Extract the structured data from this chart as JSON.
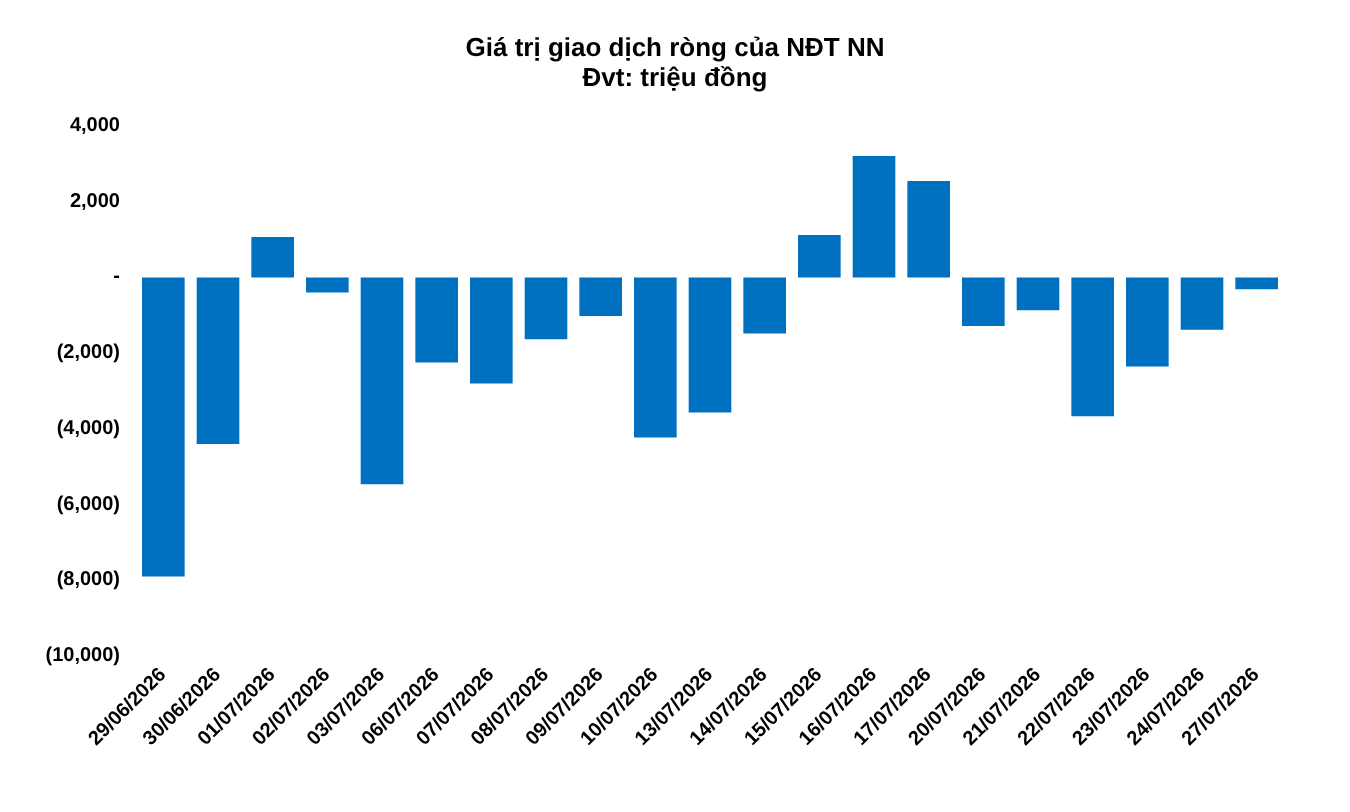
{
  "chart_data": {
    "type": "bar",
    "title": "Giá trị giao dịch ròng của NĐT NN",
    "subtitle": "Đvt: triệu đồng",
    "categories": [
      "29/06/2026",
      "30/06/2026",
      "01/07/2026",
      "02/07/2026",
      "03/07/2026",
      "06/07/2026",
      "07/07/2026",
      "08/07/2026",
      "09/07/2026",
      "10/07/2026",
      "13/07/2026",
      "14/07/2026",
      "15/07/2026",
      "16/07/2026",
      "17/07/2026",
      "20/07/2026",
      "21/07/2026",
      "22/07/2026",
      "23/07/2026",
      "24/07/2026",
      "27/07/2026"
    ],
    "values": [
      -7900,
      -4400,
      1070,
      -400,
      -5460,
      -2250,
      -2800,
      -1630,
      -1020,
      -4230,
      -3570,
      -1480,
      1120,
      3210,
      2550,
      -1280,
      -870,
      -3670,
      -2350,
      -1380,
      -310
    ],
    "color": "#0070c0",
    "ylim": [
      -10000,
      4000
    ],
    "yticks": [
      {
        "value": -10000,
        "label": "(10,000)"
      },
      {
        "value": -8000,
        "label": "(8,000)"
      },
      {
        "value": -6000,
        "label": "(6,000)"
      },
      {
        "value": -4000,
        "label": "(4,000)"
      },
      {
        "value": -2000,
        "label": "(2,000)"
      },
      {
        "value": 0,
        "label": "-"
      },
      {
        "value": 2000,
        "label": "2,000"
      },
      {
        "value": 4000,
        "label": "4,000"
      }
    ],
    "grid": false
  }
}
